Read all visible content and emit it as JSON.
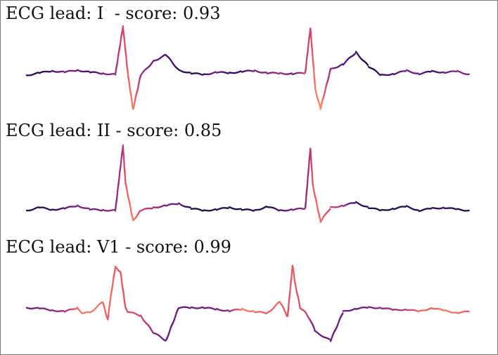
{
  "chart_data": {
    "type": "scatter",
    "colormap": "magma",
    "colormap_stops": [
      "#120d31",
      "#3b0f70",
      "#721f81",
      "#b5367a",
      "#e55064",
      "#fb8761",
      "#fcb87b"
    ],
    "panels": [
      {
        "title": "ECG lead: I  - score: 0.93",
        "lead": "I",
        "score": 0.93,
        "x_range": [
          0,
          1.75
        ],
        "y_range": [
          -1.0,
          1.35
        ],
        "x": [
          0,
          0.05,
          0.1,
          0.15,
          0.2,
          0.25,
          0.3,
          0.35,
          0.38,
          0.4,
          0.42,
          0.45,
          0.5,
          0.55,
          0.6,
          0.65,
          0.7,
          0.75,
          0.8,
          0.85,
          0.9,
          0.95,
          1.0,
          1.05,
          1.1,
          1.12,
          1.14,
          1.16,
          1.2,
          1.25,
          1.3,
          1.35,
          1.4,
          1.45,
          1.5,
          1.55,
          1.6,
          1.65,
          1.7,
          1.75
        ],
        "y": [
          0,
          0.06,
          0.12,
          0.08,
          0.14,
          0.08,
          0.05,
          0.02,
          1.32,
          0.0,
          -0.92,
          0.0,
          0.38,
          0.55,
          0.14,
          0.05,
          0.02,
          0.08,
          0.06,
          0.1,
          0.12,
          0.06,
          0.05,
          0.04,
          0.06,
          1.28,
          -0.4,
          -0.9,
          0.16,
          0.3,
          0.62,
          0.24,
          0.0,
          0.04,
          0.12,
          0.04,
          0.1,
          0.08,
          0.1,
          0.02
        ],
        "score_values": [
          0.15,
          0.05,
          0.2,
          0.35,
          0.3,
          0.15,
          0.35,
          0.45,
          0.6,
          0.7,
          0.82,
          0.45,
          0.3,
          0.2,
          0.15,
          0.05,
          0.15,
          0.35,
          0.1,
          0.15,
          0.35,
          0.35,
          0.45,
          0.3,
          0.55,
          0.6,
          0.8,
          0.85,
          0.4,
          0.25,
          0.15,
          0.05,
          0.15,
          0.2,
          0.35,
          0.3,
          0.15,
          0.3,
          0.4,
          0.35
        ]
      },
      {
        "title": "ECG lead: II - score: 0.85",
        "lead": "II",
        "score": 0.85,
        "x_range": [
          0,
          1.75
        ],
        "y_range": [
          -0.35,
          1.35
        ],
        "x": [
          0,
          0.05,
          0.1,
          0.15,
          0.2,
          0.25,
          0.3,
          0.35,
          0.38,
          0.39,
          0.42,
          0.45,
          0.5,
          0.55,
          0.6,
          0.65,
          0.7,
          0.75,
          0.8,
          0.85,
          0.9,
          0.95,
          1.0,
          1.05,
          1.1,
          1.12,
          1.13,
          1.16,
          1.2,
          1.25,
          1.3,
          1.35,
          1.4,
          1.45,
          1.5,
          1.55,
          1.6,
          1.65,
          1.7,
          1.75
        ],
        "y": [
          0,
          0.06,
          0.02,
          0.04,
          0.1,
          0.02,
          0.01,
          0.0,
          1.3,
          0.55,
          -0.2,
          0.0,
          0.06,
          0.1,
          0.14,
          0.04,
          0.0,
          0.02,
          0.06,
          0.02,
          0.0,
          0.08,
          0.0,
          0.02,
          0.04,
          1.25,
          0.5,
          -0.22,
          0.06,
          0.1,
          0.16,
          0.06,
          0.0,
          0.04,
          0.08,
          0.0,
          0.04,
          0.06,
          0.02,
          0.0
        ],
        "score_values": [
          0.1,
          0.1,
          0.1,
          0.25,
          0.35,
          0.35,
          0.35,
          0.4,
          0.5,
          0.7,
          0.8,
          0.6,
          0.45,
          0.35,
          0.3,
          0.05,
          0.05,
          0.1,
          0.05,
          0.05,
          0.1,
          0.05,
          0.2,
          0.35,
          0.4,
          0.5,
          0.7,
          0.75,
          0.6,
          0.45,
          0.15,
          0.1,
          0.05,
          0.05,
          0.1,
          0.05,
          0.1,
          0.15,
          0.05,
          0.1
        ]
      },
      {
        "title": "ECG lead: V1 - score: 0.99",
        "lead": "V1",
        "score": 0.99,
        "x_range": [
          0,
          1.75
        ],
        "y_range": [
          -0.9,
          1.2
        ],
        "x": [
          0,
          0.05,
          0.1,
          0.15,
          0.2,
          0.22,
          0.25,
          0.3,
          0.32,
          0.33,
          0.35,
          0.37,
          0.39,
          0.4,
          0.45,
          0.5,
          0.55,
          0.6,
          0.65,
          0.7,
          0.75,
          0.8,
          0.85,
          0.9,
          0.95,
          1.0,
          1.03,
          1.05,
          1.06,
          1.08,
          1.1,
          1.12,
          1.14,
          1.2,
          1.25,
          1.3,
          1.35,
          1.4,
          1.45,
          1.5,
          1.55,
          1.6,
          1.65,
          1.7,
          1.75
        ],
        "y": [
          0,
          -0.02,
          -0.06,
          -0.1,
          0.0,
          -0.14,
          -0.12,
          0.14,
          -0.3,
          0.2,
          1.02,
          0.9,
          0.0,
          -0.1,
          -0.2,
          -0.62,
          -0.82,
          0.0,
          0.0,
          0.0,
          -0.04,
          -0.08,
          -0.04,
          -0.1,
          -0.14,
          0.15,
          -0.22,
          1.06,
          0.6,
          0.0,
          -0.12,
          -0.3,
          -0.6,
          -0.82,
          -0.1,
          -0.02,
          0.0,
          0.0,
          -0.06,
          -0.04,
          -0.1,
          0.0,
          -0.08,
          -0.12,
          -0.1
        ],
        "score_values": [
          0.3,
          0.35,
          0.4,
          0.45,
          0.75,
          0.8,
          0.8,
          0.75,
          0.7,
          0.75,
          0.7,
          0.7,
          0.65,
          0.65,
          0.6,
          0.4,
          0.3,
          0.3,
          0.3,
          0.3,
          0.35,
          0.4,
          0.8,
          0.75,
          0.7,
          0.75,
          0.65,
          0.7,
          0.7,
          0.65,
          0.6,
          0.45,
          0.3,
          0.3,
          0.3,
          0.3,
          0.35,
          0.4,
          0.45,
          0.55,
          0.75,
          0.7,
          0.8,
          0.75,
          0.7
        ]
      }
    ]
  }
}
